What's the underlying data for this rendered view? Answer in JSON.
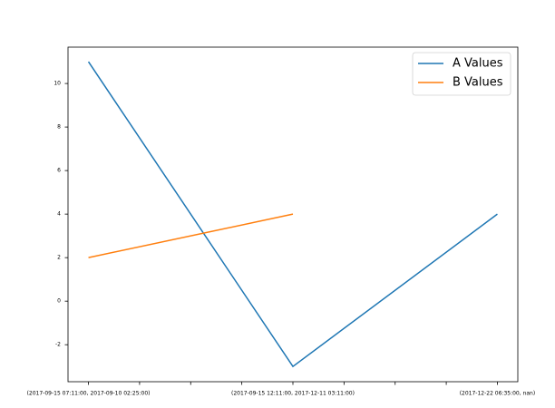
{
  "chart_data": {
    "type": "line",
    "categories": [
      "(2017-09-15 07:11:00, 2017-09-10 02:25:00)",
      "(2017-09-15 12:11:00, 2017-12-11 03:11:00)",
      "(2017-12-22 06:35:00, nan)"
    ],
    "series": [
      {
        "name": "A Values",
        "color": "#1f77b4",
        "values": [
          11,
          -3,
          4
        ]
      },
      {
        "name": "B Values",
        "color": "#ff7f0e",
        "values": [
          2,
          4,
          null
        ]
      }
    ],
    "xlim": [
      -0.1,
      2.1
    ],
    "xminorticks": [
      0.25,
      0.5,
      0.75,
      1.25,
      1.5,
      1.75
    ],
    "ylim": [
      -3.7,
      11.67
    ],
    "yticks": [
      -2,
      0,
      2,
      4,
      6,
      8,
      10
    ],
    "legend": "upper right"
  }
}
